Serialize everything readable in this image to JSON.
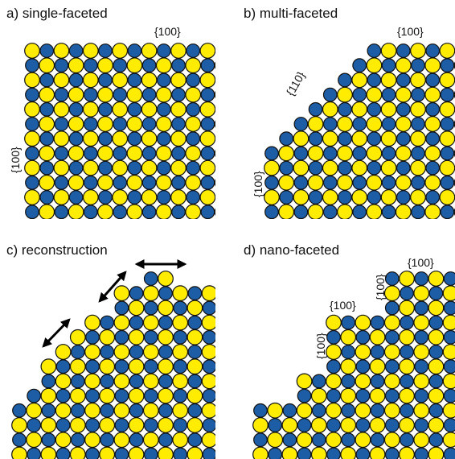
{
  "panels": [
    {
      "title": "a) single-faceted",
      "labels": [
        "{100}",
        "{100}"
      ]
    },
    {
      "title": "b) multi-faceted",
      "labels": [
        "{100}",
        "{110}",
        "{100}"
      ]
    },
    {
      "title": "c) reconstruction",
      "labels": []
    },
    {
      "title": "d) nano-faceted",
      "labels": [
        "{100}",
        "{100}",
        "{100}",
        "{100}"
      ]
    }
  ]
}
